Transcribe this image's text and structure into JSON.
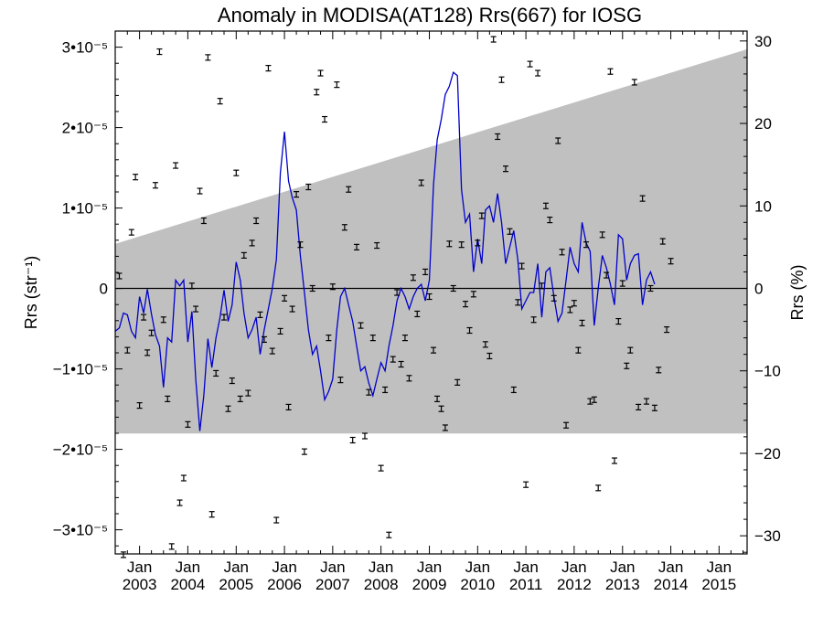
{
  "chart_data": {
    "type": "line",
    "title": "Anomaly in MODISA(AT128) Rrs(667) for IOSG",
    "ylabel_left": "Rrs (str⁻¹)",
    "ylabel_right": "Rrs (%)",
    "y_left_unit_ticks": [
      {
        "value": 3e-05,
        "label": "3•10⁻⁵"
      },
      {
        "value": 2e-05,
        "label": "2•10⁻⁵"
      },
      {
        "value": 1e-05,
        "label": "1•10⁻⁵"
      },
      {
        "value": 0,
        "label": "0"
      },
      {
        "value": -1e-05,
        "label": "−1•10⁻⁵"
      },
      {
        "value": -2e-05,
        "label": "−2•10⁻⁵"
      },
      {
        "value": -3e-05,
        "label": "−3•10⁻⁵"
      }
    ],
    "y_right_ticks": [
      "30",
      "20",
      "10",
      "0",
      "−10",
      "−20",
      "−30"
    ],
    "y_right_values": [
      30,
      20,
      10,
      0,
      -10,
      -20,
      -30
    ],
    "ylim_left": [
      -3.3e-05,
      3.2e-05
    ],
    "ylim_right": [
      -32.2,
      31.2
    ],
    "xlim": [
      "2002-07-01",
      "2015-08-01"
    ],
    "x_ticks": [
      {
        "month": "Jan",
        "year": "2003",
        "date": "2003-01-01"
      },
      {
        "month": "Jan",
        "year": "2004",
        "date": "2004-01-01"
      },
      {
        "month": "Jan",
        "year": "2005",
        "date": "2005-01-01"
      },
      {
        "month": "Jan",
        "year": "2006",
        "date": "2006-01-01"
      },
      {
        "month": "Jan",
        "year": "2007",
        "date": "2007-01-01"
      },
      {
        "month": "Jan",
        "year": "2008",
        "date": "2008-01-01"
      },
      {
        "month": "Jan",
        "year": "2009",
        "date": "2009-01-01"
      },
      {
        "month": "Jan",
        "year": "2010",
        "date": "2010-01-01"
      },
      {
        "month": "Jan",
        "year": "2011",
        "date": "2011-01-01"
      },
      {
        "month": "Jan",
        "year": "2012",
        "date": "2012-01-01"
      },
      {
        "month": "Jan",
        "year": "2013",
        "date": "2013-01-01"
      },
      {
        "month": "Jan",
        "year": "2014",
        "date": "2014-01-01"
      },
      {
        "month": "Jan",
        "year": "2015",
        "date": "2015-01-01"
      }
    ],
    "shaded_band_percent": {
      "x": [
        "2002-07-01",
        "2015-08-01"
      ],
      "upper": [
        5.4,
        29.0
      ],
      "lower": [
        -17.6,
        -17.6
      ]
    },
    "line_color": "#0000cc",
    "band_color": "#c0c0c0",
    "series": [
      {
        "style": "line",
        "start": "2002-07-01",
        "step_months": 1,
        "values_percent": [
          -5.2,
          -4.8,
          -3.0,
          -3.2,
          -5.2,
          -6.0,
          -1.0,
          -3.0,
          -0.1,
          -3.1,
          -5.6,
          -7.0,
          -12.0,
          -6.0,
          -6.5,
          1.0,
          0.3,
          1.0,
          -6.5,
          -2.8,
          -11.0,
          -17.3,
          -13.0,
          -6.1,
          -9.6,
          -6.0,
          -3.5,
          -0.2,
          -4.0,
          -2.0,
          3.2,
          1.0,
          -3.0,
          -6.0,
          -5.0,
          -3.5,
          -8.0,
          -5.0,
          -2.5,
          0.0,
          3.5,
          14.0,
          19.0,
          13.0,
          11.0,
          9.5,
          4.0,
          -0.5,
          -5.0,
          -8.0,
          -7.0,
          -10.0,
          -13.5,
          -12.5,
          -11.0,
          -5.0,
          -1.0,
          0.0,
          -2.0,
          -4.0,
          -7.0,
          -10.0,
          -9.5,
          -11.5,
          -13.0,
          -11.0,
          -9.0,
          -10.0,
          -7.0,
          -4.5,
          -1.5,
          0.0,
          -1.0,
          -2.5,
          -1.0,
          0.0,
          0.5,
          -1.5,
          1.0,
          12.5,
          18.0,
          20.5,
          23.5,
          24.5,
          26.2,
          25.8,
          12.0,
          8.0,
          9.0,
          2.0,
          6.0,
          3.0,
          9.5,
          10.0,
          8.0,
          11.5,
          8.0,
          3.0,
          5.0,
          7.0,
          3.5,
          -2.5,
          -1.5,
          -0.5,
          -0.5,
          3.0,
          -3.5,
          2.0,
          2.5,
          -1.0,
          -4.0,
          -3.0,
          1.0,
          5.0,
          3.0,
          2.0,
          8.0,
          5.5,
          4.5,
          -4.5,
          0.0,
          4.0,
          2.5,
          0.5,
          -2.0,
          6.5,
          6.0,
          1.0,
          3.0,
          4.0,
          4.2,
          -2.0,
          1.0,
          2.0,
          0.5
        ]
      },
      {
        "style": "errorbar-points",
        "points_percent": [
          [
            "2002-08-01",
            1.5
          ],
          [
            "2002-09-01",
            -32.3
          ],
          [
            "2002-10-01",
            -7.5
          ],
          [
            "2002-11-01",
            6.8
          ],
          [
            "2002-12-01",
            13.5
          ],
          [
            "2003-01-01",
            -14.2
          ],
          [
            "2003-02-01",
            -3.5
          ],
          [
            "2003-03-01",
            -7.8
          ],
          [
            "2003-04-01",
            -5.4
          ],
          [
            "2003-05-01",
            12.5
          ],
          [
            "2003-06-01",
            28.7
          ],
          [
            "2003-07-01",
            -3.8
          ],
          [
            "2003-08-01",
            -13.4
          ],
          [
            "2003-09-01",
            -31.3
          ],
          [
            "2003-10-01",
            14.9
          ],
          [
            "2003-11-01",
            -26.0
          ],
          [
            "2003-12-01",
            -23.0
          ],
          [
            "2004-01-01",
            -16.5
          ],
          [
            "2004-02-01",
            0.3
          ],
          [
            "2004-03-01",
            -2.5
          ],
          [
            "2004-04-01",
            11.8
          ],
          [
            "2004-05-01",
            8.2
          ],
          [
            "2004-06-01",
            28.0
          ],
          [
            "2004-07-01",
            -27.4
          ],
          [
            "2004-08-01",
            -10.3
          ],
          [
            "2004-09-01",
            22.7
          ],
          [
            "2004-10-01",
            -3.5
          ],
          [
            "2004-11-01",
            -14.6
          ],
          [
            "2004-12-01",
            -11.2
          ],
          [
            "2005-01-01",
            14.0
          ],
          [
            "2005-02-01",
            -13.4
          ],
          [
            "2005-03-01",
            4.0
          ],
          [
            "2005-04-01",
            -12.7
          ],
          [
            "2005-05-01",
            5.5
          ],
          [
            "2005-06-01",
            8.2
          ],
          [
            "2005-07-01",
            -3.2
          ],
          [
            "2005-08-01",
            -6.2
          ],
          [
            "2005-09-01",
            26.7
          ],
          [
            "2005-10-01",
            -7.6
          ],
          [
            "2005-11-01",
            -28.1
          ],
          [
            "2005-12-01",
            -5.2
          ],
          [
            "2006-01-01",
            -1.2
          ],
          [
            "2006-02-01",
            -14.4
          ],
          [
            "2006-03-01",
            -2.5
          ],
          [
            "2006-04-01",
            11.4
          ],
          [
            "2006-05-01",
            5.3
          ],
          [
            "2006-06-01",
            -19.8
          ],
          [
            "2006-07-01",
            12.3
          ],
          [
            "2006-08-01",
            0.0
          ],
          [
            "2006-09-01",
            23.8
          ],
          [
            "2006-10-01",
            26.1
          ],
          [
            "2006-11-01",
            20.5
          ],
          [
            "2006-12-01",
            -6.0
          ],
          [
            "2007-01-01",
            0.2
          ],
          [
            "2007-02-01",
            24.7
          ],
          [
            "2007-03-01",
            -11.1
          ],
          [
            "2007-04-01",
            7.4
          ],
          [
            "2007-05-01",
            12.0
          ],
          [
            "2007-06-01",
            -18.4
          ],
          [
            "2007-07-01",
            5.0
          ],
          [
            "2007-08-01",
            -4.5
          ],
          [
            "2007-09-01",
            -17.9
          ],
          [
            "2007-10-01",
            -12.6
          ],
          [
            "2007-11-01",
            -6.0
          ],
          [
            "2007-12-01",
            5.2
          ],
          [
            "2008-01-01",
            -21.8
          ],
          [
            "2008-02-01",
            -12.3
          ],
          [
            "2008-03-01",
            -29.9
          ],
          [
            "2008-04-01",
            -8.6
          ],
          [
            "2008-05-01",
            -0.5
          ],
          [
            "2008-06-01",
            -9.2
          ],
          [
            "2008-07-01",
            -6.0
          ],
          [
            "2008-08-01",
            -10.9
          ],
          [
            "2008-09-01",
            1.3
          ],
          [
            "2008-10-01",
            -3.1
          ],
          [
            "2008-11-01",
            12.8
          ],
          [
            "2008-12-01",
            2.0
          ],
          [
            "2009-01-01",
            -1.0
          ],
          [
            "2009-02-01",
            -7.5
          ],
          [
            "2009-03-01",
            -13.4
          ],
          [
            "2009-04-01",
            -14.6
          ],
          [
            "2009-05-01",
            -16.9
          ],
          [
            "2009-06-01",
            5.4
          ],
          [
            "2009-07-01",
            0.0
          ],
          [
            "2009-08-01",
            -11.4
          ],
          [
            "2009-09-01",
            5.3
          ],
          [
            "2009-10-01",
            -1.9
          ],
          [
            "2009-11-01",
            -5.1
          ],
          [
            "2009-12-01",
            -0.7
          ],
          [
            "2010-01-01",
            5.5
          ],
          [
            "2010-02-01",
            8.8
          ],
          [
            "2010-03-01",
            -6.8
          ],
          [
            "2010-04-01",
            -8.2
          ],
          [
            "2010-05-01",
            30.2
          ],
          [
            "2010-06-01",
            18.4
          ],
          [
            "2010-07-01",
            25.3
          ],
          [
            "2010-08-01",
            14.5
          ],
          [
            "2010-09-01",
            6.9
          ],
          [
            "2010-10-01",
            -12.3
          ],
          [
            "2010-11-01",
            -1.7
          ],
          [
            "2010-12-01",
            2.7
          ],
          [
            "2011-01-01",
            -23.8
          ],
          [
            "2011-02-01",
            27.2
          ],
          [
            "2011-03-01",
            -3.8
          ],
          [
            "2011-04-01",
            26.1
          ],
          [
            "2011-05-01",
            0.3
          ],
          [
            "2011-06-01",
            10.0
          ],
          [
            "2011-07-01",
            8.3
          ],
          [
            "2011-08-01",
            -1.2
          ],
          [
            "2011-09-01",
            17.9
          ],
          [
            "2011-10-01",
            4.4
          ],
          [
            "2011-11-01",
            -16.6
          ],
          [
            "2011-12-01",
            -2.6
          ],
          [
            "2012-01-01",
            -1.8
          ],
          [
            "2012-02-01",
            -7.5
          ],
          [
            "2012-03-01",
            -4.2
          ],
          [
            "2012-04-01",
            5.3
          ],
          [
            "2012-05-01",
            -13.7
          ],
          [
            "2012-06-01",
            -13.5
          ],
          [
            "2012-07-01",
            -24.2
          ],
          [
            "2012-08-01",
            6.5
          ],
          [
            "2012-09-01",
            1.6
          ],
          [
            "2012-10-01",
            26.3
          ],
          [
            "2012-11-01",
            -20.9
          ],
          [
            "2012-12-01",
            -4.0
          ],
          [
            "2013-01-01",
            0.6
          ],
          [
            "2013-02-01",
            -9.4
          ],
          [
            "2013-03-01",
            -7.5
          ],
          [
            "2013-04-01",
            25.0
          ],
          [
            "2013-05-01",
            -14.4
          ],
          [
            "2013-06-01",
            10.9
          ],
          [
            "2013-07-01",
            -13.7
          ],
          [
            "2013-08-01",
            0.0
          ],
          [
            "2013-09-01",
            -14.5
          ],
          [
            "2013-10-01",
            -9.9
          ],
          [
            "2013-11-01",
            5.7
          ],
          [
            "2013-12-01",
            -5.0
          ],
          [
            "2014-01-01",
            3.3
          ]
        ]
      }
    ]
  }
}
